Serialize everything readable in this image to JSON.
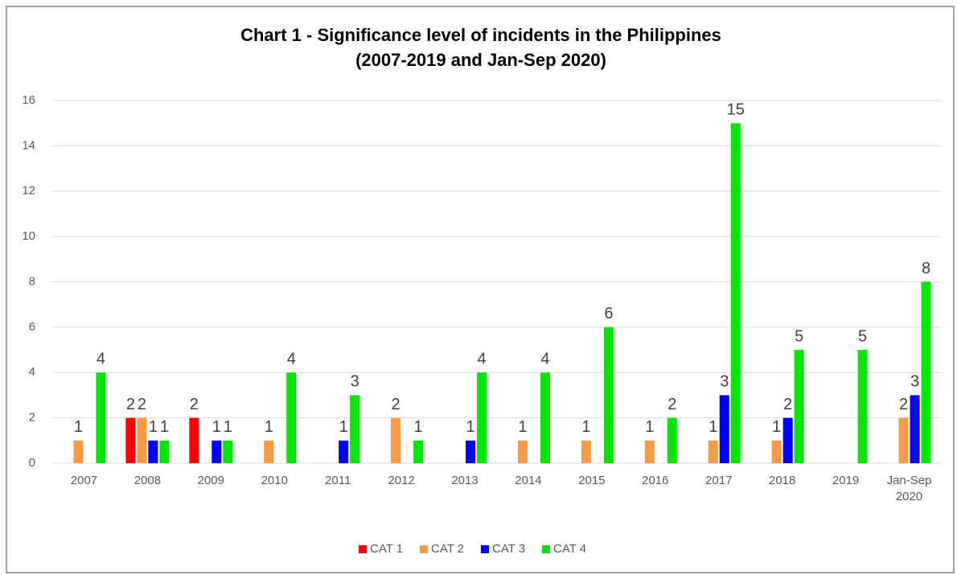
{
  "chart_data": {
    "type": "bar",
    "title": "Chart 1 - Significance level of incidents in the Philippines",
    "subtitle": "(2007-2019 and Jan-Sep 2020)",
    "categories": [
      "2007",
      "2008",
      "2009",
      "2010",
      "2011",
      "2012",
      "2013",
      "2014",
      "2015",
      "2016",
      "2017",
      "2018",
      "2019",
      "Jan-Sep 2020"
    ],
    "series": [
      {
        "name": "CAT 1",
        "color": "#ff0000",
        "values": [
          null,
          2,
          2,
          null,
          null,
          null,
          null,
          null,
          null,
          null,
          null,
          null,
          null,
          null
        ]
      },
      {
        "name": "CAT 2",
        "color": "#f79a46",
        "values": [
          1,
          2,
          null,
          1,
          null,
          2,
          null,
          1,
          1,
          1,
          1,
          1,
          null,
          2
        ]
      },
      {
        "name": "CAT 3",
        "color": "#0000ff",
        "values": [
          null,
          1,
          1,
          null,
          1,
          null,
          1,
          null,
          null,
          null,
          3,
          2,
          null,
          3
        ]
      },
      {
        "name": "CAT 4",
        "color": "#00e600",
        "values": [
          4,
          1,
          1,
          4,
          3,
          1,
          4,
          4,
          6,
          2,
          15,
          5,
          5,
          8
        ]
      }
    ],
    "ylim": [
      0,
      16
    ],
    "yticks": [
      0,
      2,
      4,
      6,
      8,
      10,
      12,
      14,
      16
    ],
    "grid": true,
    "legend": "bottom"
  }
}
